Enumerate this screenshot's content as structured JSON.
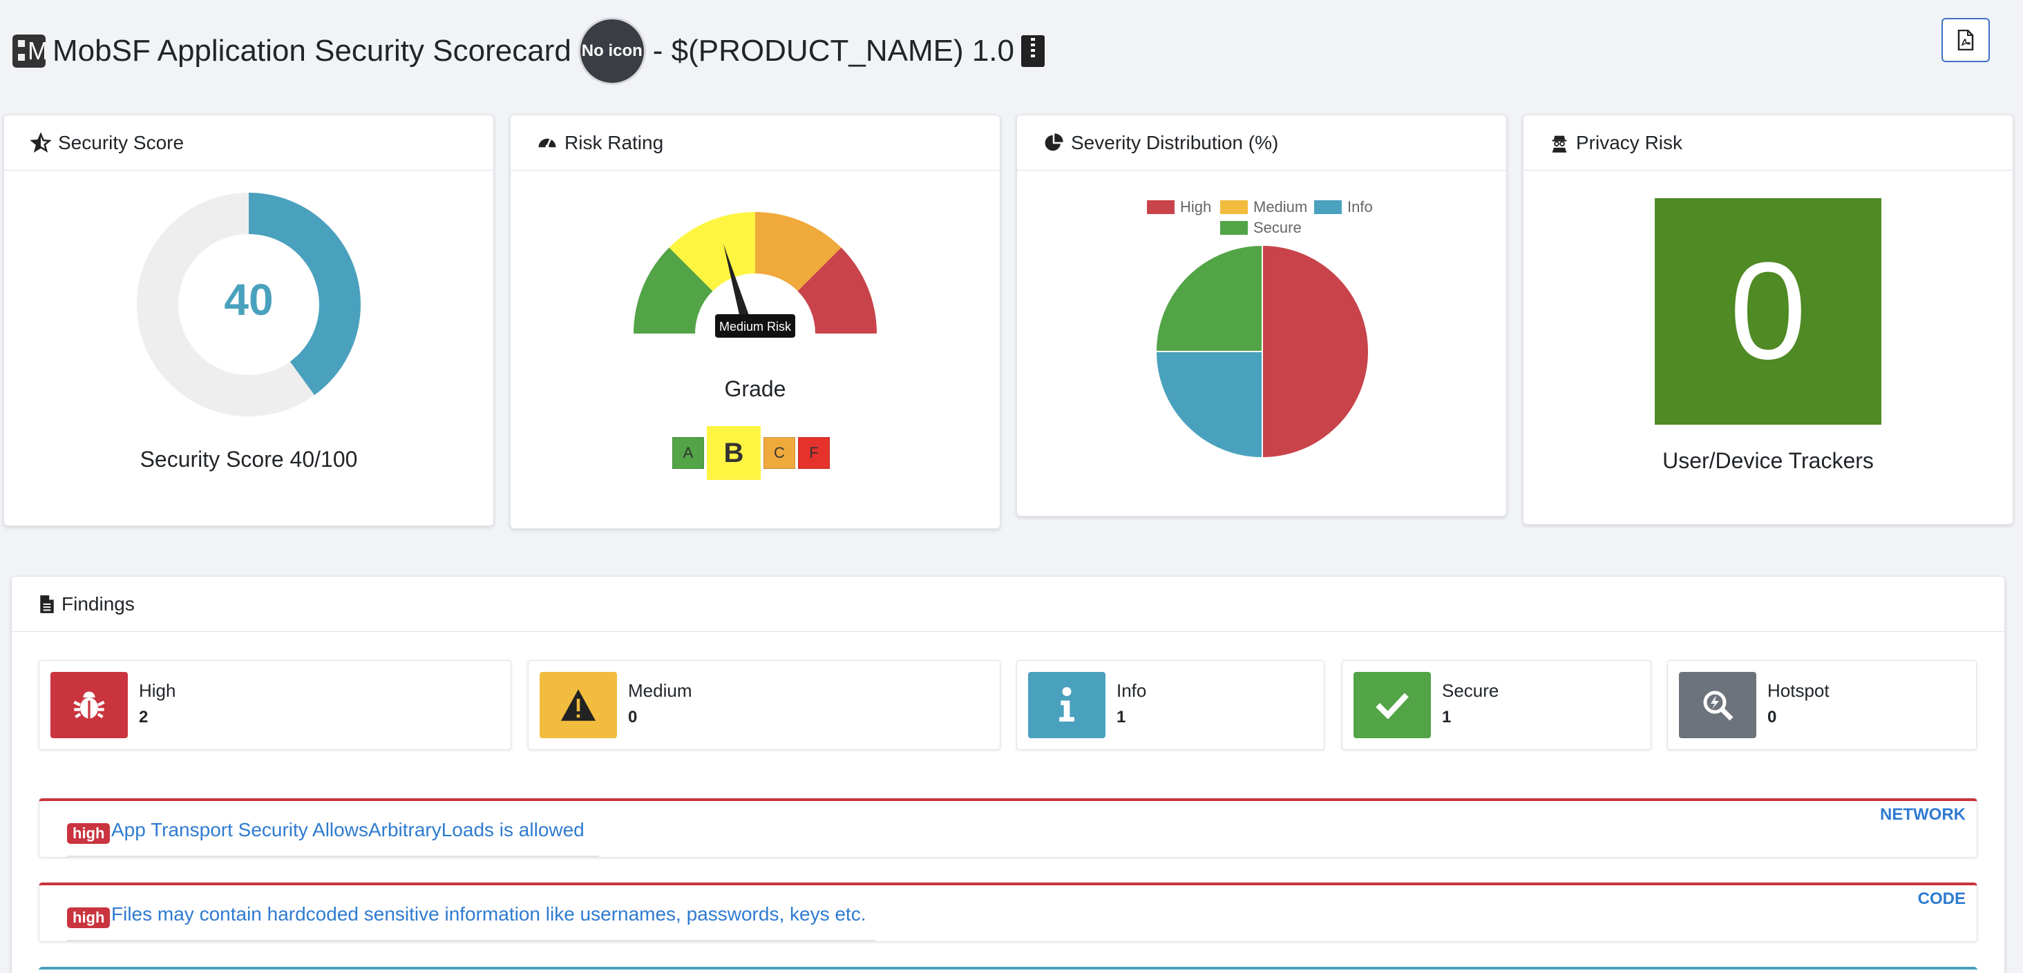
{
  "header": {
    "title": "MobSF Application Security Scorecard",
    "no_icon_label": "No icon",
    "product": "- $(PRODUCT_NAME) 1.0"
  },
  "security_score": {
    "header": "Security Score",
    "value": "40",
    "caption": "Security Score 40/100",
    "fraction": 0.4,
    "color": "#4aa1bd"
  },
  "risk_rating": {
    "header": "Risk Rating",
    "gauge_label": "Medium Risk",
    "grade_label": "Grade",
    "grades": [
      {
        "letter": "A",
        "color": "#52a447",
        "selected": false
      },
      {
        "letter": "B",
        "color": "#fdf542",
        "selected": true
      },
      {
        "letter": "C",
        "color": "#f0a93b",
        "selected": false
      },
      {
        "letter": "F",
        "color": "#e5322c",
        "selected": false
      }
    ]
  },
  "severity_distribution": {
    "header": "Severity Distribution (%)"
  },
  "chart_data": {
    "type": "pie",
    "categories": [
      "High",
      "Medium",
      "Info",
      "Secure"
    ],
    "values": [
      50,
      0,
      25,
      25
    ],
    "colors": [
      "#c9434a",
      "#f2bc3f",
      "#4aa1bd",
      "#52a447"
    ],
    "title": "Severity Distribution (%)",
    "legend": "top"
  },
  "privacy_risk": {
    "header": "Privacy Risk",
    "value": "0",
    "caption": "User/Device Trackers",
    "color": "#4f8a24"
  },
  "findings": {
    "header": "Findings",
    "stats": [
      {
        "label": "High",
        "value": "2",
        "color": "#c9343f",
        "icon": "bug-icon"
      },
      {
        "label": "Medium",
        "value": "0",
        "color": "#f2bc3f",
        "icon": "warning-icon"
      },
      {
        "label": "Info",
        "value": "1",
        "color": "#4aa1bd",
        "icon": "info-icon"
      },
      {
        "label": "Secure",
        "value": "1",
        "color": "#52a447",
        "icon": "check-icon"
      },
      {
        "label": "Hotspot",
        "value": "0",
        "color": "#6c737b",
        "icon": "hotspot-icon"
      }
    ],
    "items": [
      {
        "badge": "high",
        "title": "App Transport Security AllowsArbitraryLoads is allowed",
        "category": "NETWORK"
      },
      {
        "badge": "high",
        "title": "Files may contain hardcoded sensitive information like usernames, passwords, keys etc.",
        "category": "CODE"
      }
    ]
  }
}
